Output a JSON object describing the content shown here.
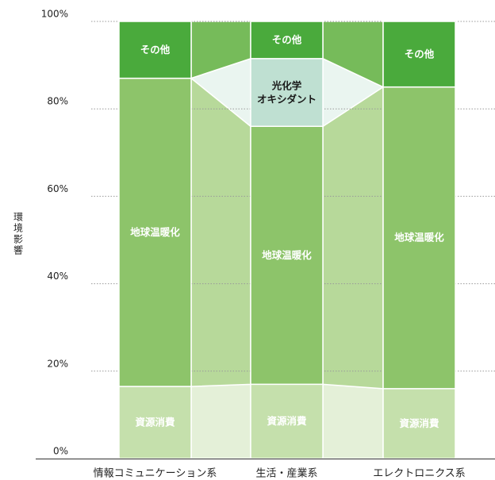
{
  "chart_data": {
    "type": "stacked-bar",
    "ylabel": "環境影響",
    "categories": [
      "情報コミュニケーション系",
      "生活・産業系",
      "エレクトロニクス系"
    ],
    "series": [
      {
        "name": "資源消費",
        "color": "#c5e0ac",
        "connector_color": "#e4f0d8",
        "text_color": "#ffffff",
        "values": [
          16.5,
          17,
          16
        ]
      },
      {
        "name": "地球温暖化",
        "color": "#8dc46a",
        "connector_color": "#b7d99a",
        "text_color": "#ffffff",
        "values": [
          70.5,
          59,
          69
        ]
      },
      {
        "name": "光化学\nオキシダント",
        "color": "#bfe0d2",
        "connector_color": "#eaf5f0",
        "text_color": "#1a1a1a",
        "values": [
          0,
          15.5,
          0
        ]
      },
      {
        "name": "その他",
        "color": "#4aaa3c",
        "connector_color": "#76bb5a",
        "text_color": "#ffffff",
        "values": [
          13,
          8.5,
          15
        ]
      }
    ],
    "ylim": [
      0,
      100
    ],
    "yticks": [
      {
        "value": 0,
        "label": "0%"
      },
      {
        "value": 20,
        "label": "20%"
      },
      {
        "value": 40,
        "label": "40%"
      },
      {
        "value": 60,
        "label": "60%"
      },
      {
        "value": 80,
        "label": "80%"
      },
      {
        "value": 100,
        "label": "100%"
      }
    ],
    "grid": true
  }
}
